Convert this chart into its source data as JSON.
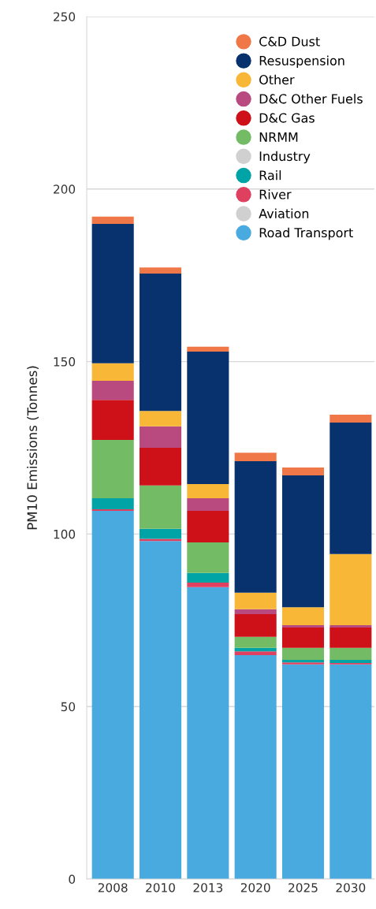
{
  "chart_data": {
    "type": "bar",
    "stacked": true,
    "ylabel": "PM10 Emissions (Tonnes)",
    "categories": [
      "2008",
      "2010",
      "2013",
      "2020",
      "2025",
      "2030"
    ],
    "series": [
      {
        "name": "Road Transport",
        "color": "#49aae0",
        "values": [
          106.7,
          98.0,
          84.6,
          64.9,
          62.2,
          62.2
        ]
      },
      {
        "name": "Aviation",
        "color": "#d0d0d0",
        "values": [
          0,
          0,
          0,
          0,
          0,
          0
        ]
      },
      {
        "name": "River",
        "color": "#e04060",
        "values": [
          0.5,
          0.6,
          1.3,
          1.1,
          0.6,
          0.4
        ]
      },
      {
        "name": "Rail",
        "color": "#00a3a6",
        "values": [
          3.2,
          2.9,
          2.8,
          1.0,
          0.7,
          0.9
        ]
      },
      {
        "name": "Industry",
        "color": "#d0d0d0",
        "values": [
          0,
          0,
          0,
          0,
          0,
          0
        ]
      },
      {
        "name": "NRMM",
        "color": "#73bb64",
        "values": [
          16.9,
          12.6,
          8.9,
          3.2,
          3.5,
          3.5
        ]
      },
      {
        "name": "D&C Gas",
        "color": "#ce1018",
        "values": [
          11.6,
          10.9,
          9.1,
          6.6,
          5.9,
          5.9
        ]
      },
      {
        "name": "D&C Other Fuels",
        "color": "#b84a80",
        "values": [
          5.5,
          6.2,
          3.7,
          1.4,
          0.7,
          0.7
        ]
      },
      {
        "name": "Other",
        "color": "#f9b738",
        "values": [
          5.1,
          4.5,
          4.1,
          4.8,
          5.2,
          20.6
        ]
      },
      {
        "name": "Resuspension",
        "color": "#08326e",
        "values": [
          40.4,
          39.8,
          38.4,
          38.1,
          38.2,
          38.1
        ]
      },
      {
        "name": "C&D Dust",
        "color": "#f07848",
        "values": [
          2.1,
          1.8,
          1.4,
          2.5,
          2.3,
          2.3
        ]
      }
    ],
    "ylim": [
      0,
      250
    ],
    "yticks": [
      0,
      50,
      100,
      150,
      200,
      250
    ],
    "grid": "y",
    "legend": "top right"
  }
}
